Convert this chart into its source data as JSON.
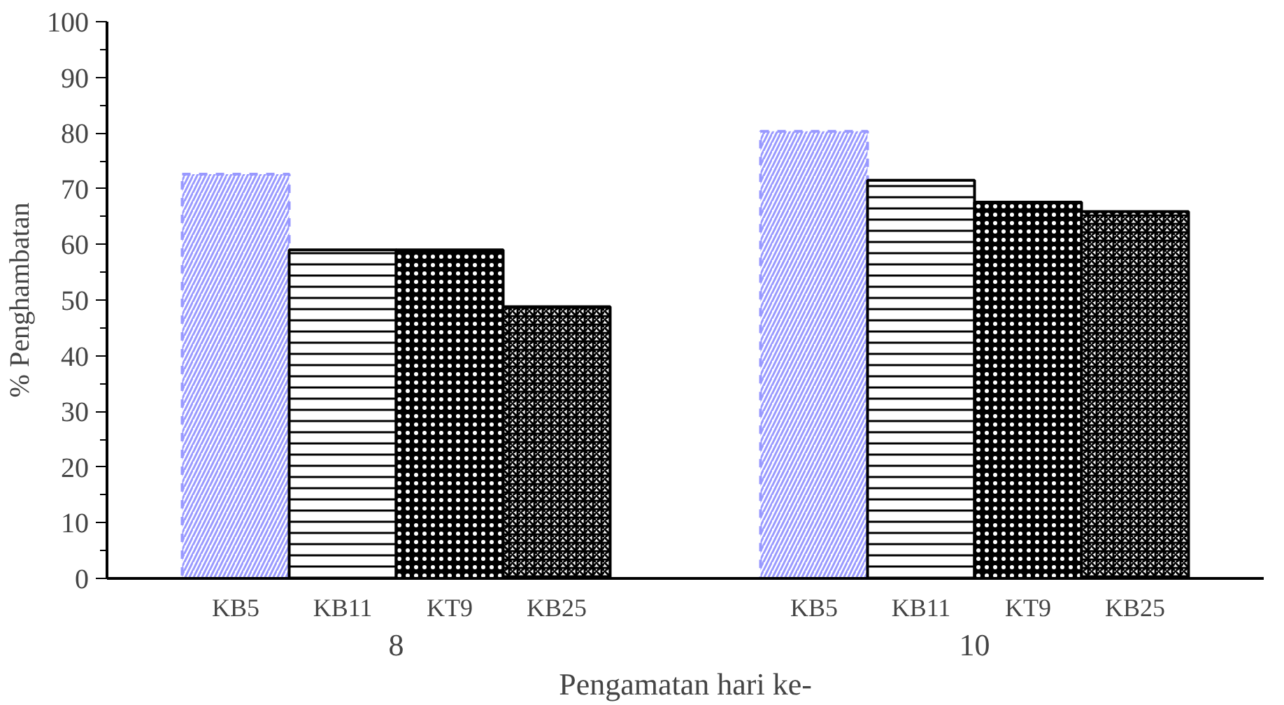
{
  "chart_data": {
    "type": "bar",
    "xlabel": "Pengamatan hari ke-",
    "ylabel": "% Penghambatan",
    "categories": [
      "8",
      "10"
    ],
    "series": [
      {
        "name": "KB5",
        "color": "#9999ff",
        "values": [
          72.6,
          80.3
        ]
      },
      {
        "name": "KB11",
        "color": "#000000",
        "values": [
          59.0,
          71.5
        ]
      },
      {
        "name": "KT9",
        "color": "#000000",
        "values": [
          59.0,
          67.6
        ]
      },
      {
        "name": "KB25",
        "color": "#000000",
        "values": [
          48.8,
          65.9
        ]
      }
    ],
    "ylim": [
      0,
      100
    ],
    "yticks": [
      0,
      10,
      20,
      30,
      40,
      50,
      60,
      70,
      80,
      90,
      100
    ],
    "grid": false
  }
}
